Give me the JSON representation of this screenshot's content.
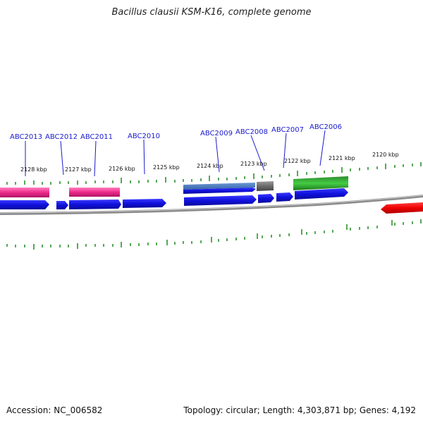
{
  "title": "Bacillus clausii KSM-K16, complete genome",
  "footer": {
    "accession": "Accession: NC_006582",
    "summary": "Topology: circular; Length: 4,303,871 bp; Genes: 4,192"
  },
  "colors": {
    "cds": "#1010dd",
    "pink": "#ee2a8a",
    "green": "#22aa22",
    "gray": "#6b6b6b",
    "red": "#ee0000",
    "tick": "#1e8c1e",
    "backbone": "#8a8a8a",
    "label": "#1a1acc"
  },
  "scale_labels": [
    "2128 kbp",
    "2127 kbp",
    "2126 kbp",
    "2125 kbp",
    "2124 kbp",
    "2123 kbp",
    "2122 kbp",
    "2121 kbp",
    "2120 kbp"
  ],
  "gene_labels": [
    "ABC2013",
    "ABC2012",
    "ABC2011",
    "ABC2010",
    "ABC2009",
    "ABC2008",
    "ABC2007",
    "ABC2006"
  ]
}
